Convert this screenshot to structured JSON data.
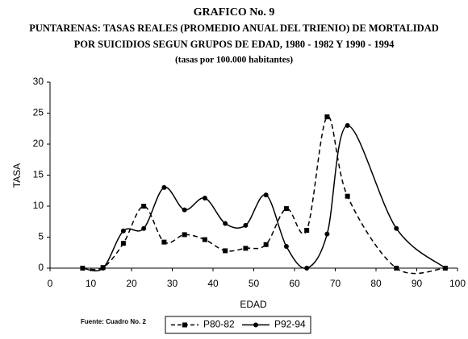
{
  "chart_data": {
    "type": "line",
    "title": "GRAFICO No. 9",
    "subtitle": [
      "PUNTARENAS: TASAS REALES (PROMEDIO ANUAL DEL TRIENIO) DE MORTALIDAD",
      "POR SUICIDIOS SEGUN GRUPOS DE EDAD, 1980 - 1982 Y 1990 - 1994"
    ],
    "note": "(tasas por 100.000 habitantes)",
    "source": "Fuente: Cuadro No. 2",
    "x_label": "EDAD",
    "y_label": "TASA",
    "x": [
      8,
      13,
      18,
      23,
      28,
      33,
      38,
      43,
      48,
      53,
      58,
      63,
      68,
      73,
      85,
      97
    ],
    "series": [
      {
        "name": "P80-82",
        "color": "#000000",
        "line_style": "dashed",
        "marker": "square",
        "values": [
          0,
          0.1,
          4.0,
          10.0,
          4.2,
          5.4,
          4.6,
          2.8,
          3.2,
          3.8,
          9.6,
          6.1,
          24.4,
          11.6,
          0,
          0
        ]
      },
      {
        "name": "P92-94",
        "color": "#000000",
        "line_style": "solid",
        "marker": "circle",
        "values": [
          0,
          0,
          6.0,
          6.4,
          13.0,
          9.4,
          11.3,
          7.2,
          6.9,
          11.8,
          3.5,
          0,
          5.5,
          23.0,
          6.4,
          0
        ]
      }
    ],
    "xlim": [
      0,
      100
    ],
    "xticks": [
      0,
      10,
      20,
      30,
      40,
      50,
      60,
      70,
      80,
      90,
      100
    ],
    "ylim": [
      0,
      30
    ],
    "yticks": [
      0,
      5,
      10,
      15,
      20,
      25,
      30
    ],
    "grid": false
  }
}
